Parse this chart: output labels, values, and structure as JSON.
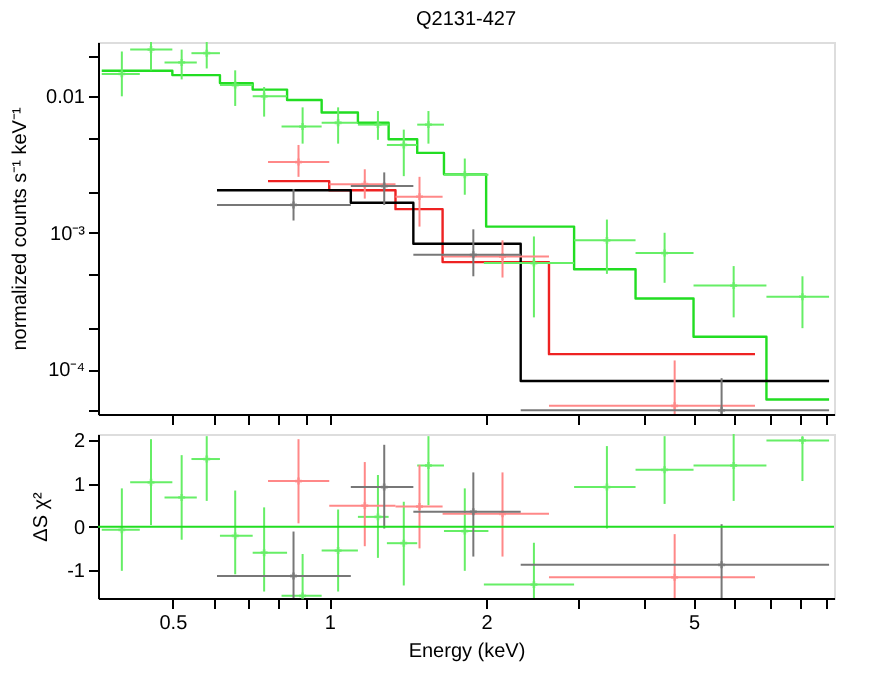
{
  "chart_data": [
    {
      "type": "scatter",
      "title": "Q2131-427",
      "ylabel": "normalized counts s⁻¹ keV⁻¹",
      "log": "xy",
      "xlim": [
        0.36,
        9.3
      ],
      "ylim": [
        4.7e-05,
        0.025
      ],
      "marker": "cross",
      "grid": false,
      "tick_labels": "y",
      "xticks": [
        0.5,
        {
          "value": 0.6,
          "label": null
        },
        {
          "value": 0.7,
          "label": null
        },
        {
          "value": 0.8,
          "label": null
        },
        {
          "value": 0.9,
          "label": null
        },
        1,
        2,
        {
          "value": 3,
          "label": null
        },
        {
          "value": 4,
          "label": null
        },
        5,
        {
          "value": 6,
          "label": null
        },
        {
          "value": 7,
          "label": null
        },
        {
          "value": 8,
          "label": null
        },
        {
          "value": 9,
          "label": null
        }
      ],
      "yticks": [
        {
          "value": 5e-05,
          "label": null
        },
        {
          "value": 0.0001,
          "label": "10⁻⁴"
        },
        {
          "value": 0.0002,
          "label": null
        },
        {
          "value": 0.0005,
          "label": null
        },
        {
          "value": 0.001,
          "label": "10⁻³"
        },
        {
          "value": 0.002,
          "label": null
        },
        {
          "value": 0.005,
          "label": null
        },
        0.01,
        {
          "value": 0.02,
          "label": null
        }
      ],
      "series": [
        {
          "color": "#66ee66",
          "x": [
            0.4,
            0.455,
            0.521,
            0.582,
            0.66,
            0.75,
            0.889,
            1.04,
            1.24,
            1.39,
            1.55,
            1.82,
            2.47,
            3.41,
            4.4,
            5.97,
            8.09
          ],
          "values": [
            0.0146,
            0.022,
            0.0177,
            0.0207,
            0.0121,
            0.01,
            0.006,
            0.0064,
            0.0062,
            0.0044,
            0.0062,
            0.00266,
            0.0006,
            0.00088,
            0.00071,
            0.00041,
            0.00034
          ],
          "errors": [
            [
              0.01,
              0.0213
            ],
            [
              0.0155,
              0.025
            ],
            [
              0.0133,
              0.022
            ],
            [
              0.016,
              0.025
            ],
            [
              0.0085,
              0.0155
            ],
            [
              0.0071,
              0.0117
            ],
            [
              0.0045,
              0.0083
            ],
            [
              0.0045,
              0.0083
            ],
            [
              0.0048,
              0.0078
            ],
            [
              0.0026,
              0.0057
            ],
            [
              0.0045,
              0.0078
            ],
            [
              0.0019,
              0.0035
            ],
            [
              0.00024,
              0.00094
            ],
            [
              0.0005,
              0.00125
            ],
            [
              0.00043,
              0.001
            ],
            [
              0.00024,
              0.00057
            ],
            [
              0.0002,
              0.00048
            ]
          ],
          "xerrors": [
            [
              0.366,
              0.433
            ],
            [
              0.415,
              0.5
            ],
            [
              0.483,
              0.557
            ],
            [
              0.544,
              0.617
            ],
            [
              0.617,
              0.713
            ],
            [
              0.713,
              0.83
            ],
            [
              0.81,
              0.967
            ],
            [
              0.967,
              1.135
            ],
            [
              1.135,
              1.3
            ],
            [
              1.29,
              1.475
            ],
            [
              1.475,
              1.66
            ],
            [
              1.66,
              2.02
            ],
            [
              1.98,
              2.95
            ],
            [
              2.95,
              3.87
            ],
            [
              3.87,
              5.0
            ],
            [
              5.0,
              6.9
            ],
            [
              6.9,
              9.1
            ]
          ]
        },
        {
          "color": "#ff8888",
          "x": [
            0.873,
            1.17,
            1.49,
            2.15,
            4.6
          ],
          "values": [
            0.0033,
            0.00227,
            0.00184,
            0.00067,
            5.4e-05
          ],
          "errors": [
            [
              0.00257,
              0.0044
            ],
            [
              0.00178,
              0.00292
            ],
            [
              0.00111,
              0.00257
            ],
            [
              0.00047,
              0.00088
            ],
            [
              4.7e-05,
              0.000116
            ]
          ],
          "xerrors": [
            [
              0.763,
              1.0
            ],
            [
              1.0,
              1.34
            ],
            [
              1.34,
              1.65
            ],
            [
              1.65,
              2.64
            ],
            [
              2.64,
              6.56
            ]
          ]
        },
        {
          "color": "#777777",
          "x": [
            0.854,
            1.275,
            1.89,
            5.66
          ],
          "values": [
            0.0016,
            0.0022,
            0.00069,
            5e-05
          ],
          "errors": [
            [
              0.00123,
              0.00209
            ],
            [
              0.0016,
              0.00277
            ],
            [
              0.00048,
              0.00106
            ],
            [
              4.7e-05,
              8.6e-05
            ]
          ],
          "xerrors": [
            [
              0.609,
              1.1
            ],
            [
              1.1,
              1.45
            ],
            [
              1.45,
              2.33
            ],
            [
              2.33,
              9.1
            ]
          ]
        },
        {
          "type": "step",
          "marker": "none",
          "color": "#22dd22",
          "x": [
            0.366,
            0.433,
            0.5,
            0.557,
            0.617,
            0.713,
            0.83,
            0.967,
            1.135,
            1.3,
            1.475,
            1.66,
            2.0,
            2.95,
            3.87,
            5.0,
            6.9,
            9.1
          ],
          "values": [
            0.0154,
            0.0154,
            0.0143,
            0.0143,
            0.0125,
            0.0112,
            0.0094,
            0.0076,
            0.0064,
            0.00484,
            0.00385,
            0.00268,
            0.00111,
            0.00054,
            0.00033,
            0.000173,
            6e-05,
            6e-05
          ]
        },
        {
          "type": "step",
          "marker": "none",
          "color": "#ee2222",
          "x": [
            0.763,
            1.0,
            1.34,
            1.65,
            2.64,
            6.56
          ],
          "values": [
            0.00239,
            0.00205,
            0.00149,
            0.00061,
            0.000129,
            0.000129
          ]
        },
        {
          "type": "step",
          "marker": "none",
          "color": "#000000",
          "x": [
            0.609,
            1.1,
            1.45,
            2.33,
            9.1
          ],
          "values": [
            0.00205,
            0.00166,
            0.00083,
            8.2e-05,
            8.2e-05
          ]
        }
      ]
    },
    {
      "type": "scatter",
      "xlabel": "Energy (keV)",
      "ylabel": "ΔS χ²",
      "log": "x",
      "xlim": [
        0.36,
        9.3
      ],
      "ylim": [
        -1.65,
        2.15
      ],
      "marker": "cross",
      "grid": false,
      "xticks": [
        0.5,
        {
          "value": 0.6,
          "label": null
        },
        {
          "value": 0.7,
          "label": null
        },
        {
          "value": 0.8,
          "label": null
        },
        {
          "value": 0.9,
          "label": null
        },
        1,
        2,
        {
          "value": 3,
          "label": null
        },
        {
          "value": 4,
          "label": null
        },
        5,
        {
          "value": 6,
          "label": null
        },
        {
          "value": 7,
          "label": null
        },
        {
          "value": 8,
          "label": null
        },
        {
          "value": 9,
          "label": null
        }
      ],
      "yticks": [
        -1,
        0,
        1,
        2
      ],
      "ref_lines": [
        {
          "axis": "y",
          "value": 0,
          "color": "#22dd22"
        }
      ],
      "series": [
        {
          "color": "#66ee66",
          "x": [
            0.4,
            0.455,
            0.521,
            0.582,
            0.66,
            0.75,
            0.889,
            1.04,
            1.24,
            1.39,
            1.55,
            1.82,
            2.47,
            3.41,
            4.4,
            5.97,
            8.09
          ],
          "values": [
            -0.07,
            1.03,
            0.68,
            1.57,
            -0.21,
            -0.6,
            -1.6,
            -0.55,
            0.23,
            -0.38,
            1.42,
            -0.1,
            -1.34,
            0.92,
            1.32,
            1.42,
            2.0
          ],
          "errors": [
            [
              -1.02,
              0.89
            ],
            [
              0.04,
              2.03
            ],
            [
              -0.3,
              1.66
            ],
            [
              0.6,
              2.1
            ],
            [
              -1.1,
              0.84
            ],
            [
              -1.5,
              0.45
            ],
            [
              -1.65,
              -0.63
            ],
            [
              -1.5,
              0.4
            ],
            [
              -0.72,
              1.2
            ],
            [
              -1.36,
              0.58
            ],
            [
              0.5,
              2.1
            ],
            [
              -1.02,
              0.89
            ],
            [
              -1.65,
              -0.37
            ],
            [
              -0.04,
              1.87
            ],
            [
              0.53,
              2.1
            ],
            [
              0.6,
              2.15
            ],
            [
              1.06,
              2.1
            ]
          ],
          "xerrors": [
            [
              0.366,
              0.433
            ],
            [
              0.415,
              0.5
            ],
            [
              0.483,
              0.557
            ],
            [
              0.544,
              0.617
            ],
            [
              0.617,
              0.713
            ],
            [
              0.713,
              0.83
            ],
            [
              0.81,
              0.967
            ],
            [
              0.967,
              1.135
            ],
            [
              1.135,
              1.3
            ],
            [
              1.29,
              1.475
            ],
            [
              1.475,
              1.66
            ],
            [
              1.66,
              2.02
            ],
            [
              1.98,
              2.95
            ],
            [
              2.95,
              3.87
            ],
            [
              3.87,
              5.0
            ],
            [
              5.0,
              6.9
            ],
            [
              6.9,
              9.1
            ]
          ]
        },
        {
          "color": "#ff8888",
          "x": [
            0.873,
            1.17,
            1.49,
            2.15,
            4.6
          ],
          "values": [
            1.06,
            0.49,
            0.47,
            0.3,
            -1.17
          ],
          "errors": [
            [
              0.08,
              2.03
            ],
            [
              -0.45,
              1.5
            ],
            [
              -0.5,
              1.43
            ],
            [
              -0.69,
              1.26
            ],
            [
              -1.65,
              -0.17
            ]
          ],
          "xerrors": [
            [
              0.763,
              1.0
            ],
            [
              1.0,
              1.34
            ],
            [
              1.34,
              1.65
            ],
            [
              1.65,
              2.64
            ],
            [
              2.64,
              6.56
            ]
          ]
        },
        {
          "color": "#777777",
          "x": [
            0.854,
            1.275,
            1.89,
            5.66
          ],
          "values": [
            -1.14,
            0.92,
            0.35,
            -0.88
          ],
          "errors": [
            [
              -1.65,
              -0.11
            ],
            [
              -0.04,
              1.9
            ],
            [
              -0.69,
              1.26
            ],
            [
              -1.65,
              0.06
            ]
          ],
          "xerrors": [
            [
              0.609,
              1.1
            ],
            [
              1.1,
              1.45
            ],
            [
              1.45,
              2.33
            ],
            [
              2.33,
              9.1
            ]
          ]
        }
      ]
    }
  ]
}
